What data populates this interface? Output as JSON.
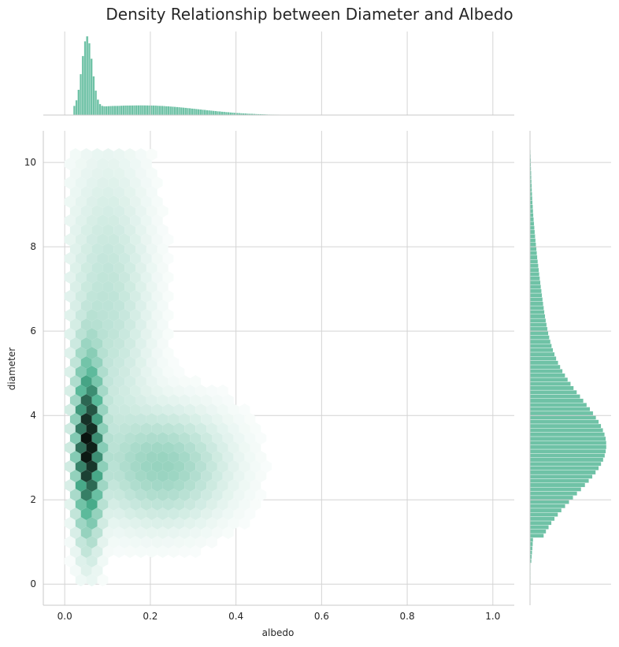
{
  "chart_data": {
    "type": "hexbin",
    "title": "Density Relationship between Diameter and Albedo",
    "xlabel": "albedo",
    "ylabel": "diameter",
    "xlim": [
      -0.05,
      1.05
    ],
    "ylim": [
      -0.5,
      10.75
    ],
    "xticks": [
      "0.0",
      "0.2",
      "0.4",
      "0.6",
      "0.8",
      "1.0"
    ],
    "yticks": [
      "0",
      "2",
      "4",
      "6",
      "8",
      "10"
    ],
    "grid": true,
    "color": "#4cb391",
    "density_components": [
      {
        "x_mean": 0.055,
        "x_sd": 0.018,
        "y_mean": 3.3,
        "y_sd": 1.2,
        "weight": 1.0
      },
      {
        "x_mean": 0.23,
        "x_sd": 0.09,
        "y_mean": 2.8,
        "y_sd": 0.8,
        "weight": 0.22
      },
      {
        "x_mean": 0.1,
        "x_sd": 0.06,
        "y_mean": 6.5,
        "y_sd": 2.2,
        "weight": 0.12
      }
    ],
    "marginal_x": {
      "bin_edges_range": [
        0.0,
        1.0
      ],
      "bin_width": 0.005,
      "peak_x": 0.052,
      "max_value": 1.0
    },
    "marginal_y": {
      "bin_edges_range": [
        0.0,
        10.2
      ],
      "bin_width": 0.1,
      "peak_y": 3.2,
      "max_value": 1.0
    }
  }
}
